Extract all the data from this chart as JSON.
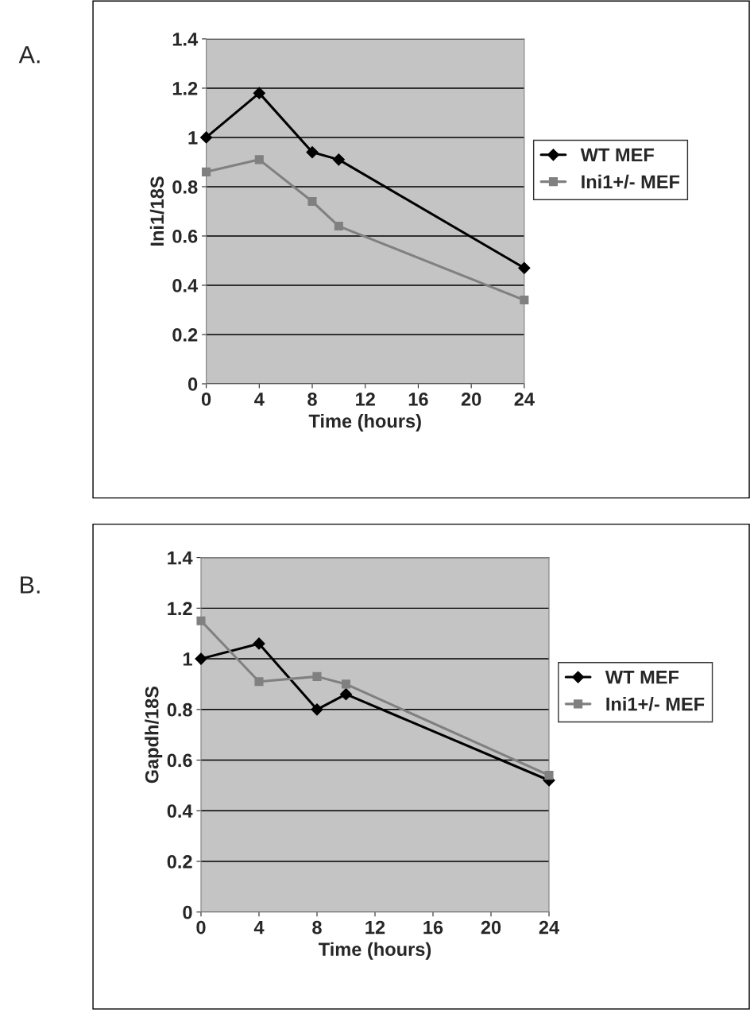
{
  "chart_data": [
    {
      "type": "line",
      "title": "A.",
      "xlabel": "Time (hours)",
      "ylabel": "Ini1/18S",
      "x": [
        0,
        4,
        8,
        10,
        24
      ],
      "series": [
        {
          "name": "WT MEF",
          "color": "#000000",
          "marker": "diamond",
          "values": [
            1.0,
            1.18,
            0.94,
            0.91,
            0.47
          ]
        },
        {
          "name": "Ini1+/- MEF",
          "color": "#808080",
          "marker": "square",
          "values": [
            0.86,
            0.91,
            0.74,
            0.64,
            0.34
          ]
        }
      ],
      "xlim": [
        0,
        24
      ],
      "xticks": [
        0,
        4,
        8,
        12,
        16,
        20,
        24
      ],
      "ylim": [
        0,
        1.4
      ],
      "yticks": [
        0,
        0.2,
        0.4,
        0.6,
        0.8,
        1,
        1.2,
        1.4
      ],
      "grid": "y",
      "legend": "right"
    },
    {
      "type": "line",
      "title": "B.",
      "xlabel": "Time (hours)",
      "ylabel": "Gapdh/18S",
      "x": [
        0,
        4,
        8,
        10,
        24
      ],
      "series": [
        {
          "name": "WT MEF",
          "color": "#000000",
          "marker": "diamond",
          "values": [
            1.0,
            1.06,
            0.8,
            0.86,
            0.52
          ]
        },
        {
          "name": "Ini1+/- MEF",
          "color": "#808080",
          "marker": "square",
          "values": [
            1.15,
            0.91,
            0.93,
            0.9,
            0.54
          ]
        }
      ],
      "xlim": [
        0,
        24
      ],
      "xticks": [
        0,
        4,
        8,
        12,
        16,
        20,
        24
      ],
      "ylim": [
        0,
        1.4
      ],
      "yticks": [
        0,
        0.2,
        0.4,
        0.6,
        0.8,
        1,
        1.2,
        1.4
      ],
      "grid": "y",
      "legend": "right"
    }
  ]
}
